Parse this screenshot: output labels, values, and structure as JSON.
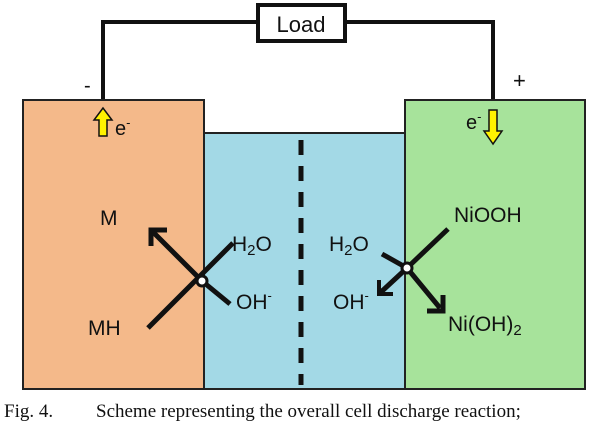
{
  "load_label": "Load",
  "negative_terminal": "-",
  "positive_terminal": "+",
  "electron_left": "e",
  "electron_right": "e",
  "electron_superscript": "-",
  "anode": {
    "top_species": "M",
    "bottom_species": "MH"
  },
  "electrolyte_left": {
    "h2o_base": "H",
    "h2o_sub": "2",
    "h2o_end": "O",
    "oh": "OH",
    "oh_sup": "-"
  },
  "electrolyte_right": {
    "h2o_base": "H",
    "h2o_sub": "2",
    "h2o_end": "O",
    "oh": "OH",
    "oh_sup": "-"
  },
  "cathode": {
    "top_species": "NiOOH",
    "bottom_base": "Ni(OH)",
    "bottom_sub": "2"
  },
  "colors": {
    "anode_fill": "#f4b98a",
    "electrolyte_fill": "#a3d9e6",
    "cathode_fill": "#a7e39b",
    "arrow_yellow": "#fff200",
    "wire": "#111111"
  },
  "caption": {
    "fig_number": "Fig. 4.",
    "text": "Scheme representing the overall cell discharge reaction;"
  }
}
